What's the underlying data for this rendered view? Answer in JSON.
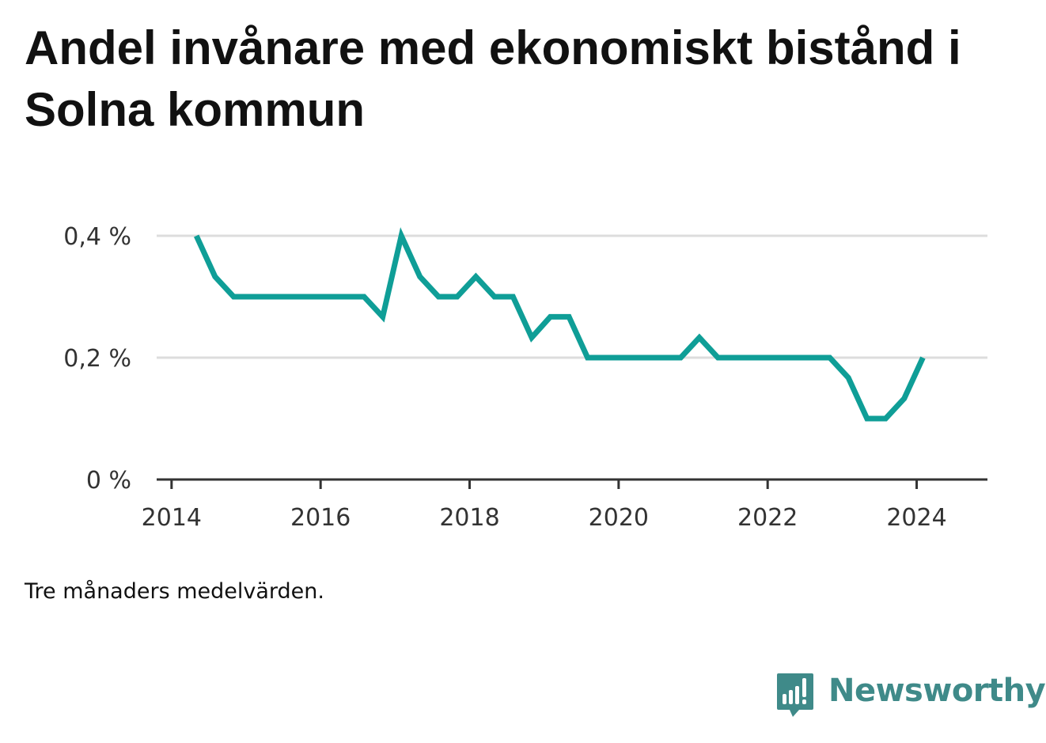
{
  "title": "Andel invånare med ekonomiskt bistånd i Solna kommun",
  "note": "Tre månaders medelvärden.",
  "brand": {
    "name": "Newsworthy",
    "icon": "newsworthy-bar-chart-logo-icon",
    "color": "#3f8a89"
  },
  "colors": {
    "line": "#0f9e97",
    "grid": "#dddddd",
    "axis": "#333333",
    "text": "#111111"
  },
  "chart_data": {
    "type": "line",
    "title": "Andel invånare med ekonomiskt bistånd i Solna kommun",
    "subtitle": "",
    "xlabel": "",
    "ylabel": "",
    "x_ticks": [
      2014,
      2016,
      2018,
      2020,
      2022,
      2024
    ],
    "y_ticks": [
      {
        "value": 0,
        "label": "0 %"
      },
      {
        "value": 0.2,
        "label": "0,2 %"
      },
      {
        "value": 0.4,
        "label": "0,4 %"
      }
    ],
    "xlim": [
      2013.8,
      2024.95
    ],
    "ylim": [
      0,
      0.4
    ],
    "grid": true,
    "legend": "none",
    "series": [
      {
        "x": [
          "2014-05",
          "2014-08",
          "2014-11",
          "2015-02",
          "2015-05",
          "2015-08",
          "2015-11",
          "2016-02",
          "2016-05",
          "2016-08",
          "2016-11",
          "2017-02",
          "2017-05",
          "2017-08",
          "2017-11",
          "2018-02",
          "2018-05",
          "2018-08",
          "2018-11",
          "2019-02",
          "2019-05",
          "2019-08",
          "2019-11",
          "2020-02",
          "2020-05",
          "2020-08",
          "2020-11",
          "2021-02",
          "2021-05",
          "2021-08",
          "2021-11",
          "2022-02",
          "2022-05",
          "2022-08",
          "2022-11",
          "2023-02",
          "2023-05",
          "2023-08",
          "2023-11",
          "2024-02"
        ],
        "values": [
          0.4,
          0.333,
          0.3,
          0.3,
          0.3,
          0.3,
          0.3,
          0.3,
          0.3,
          0.3,
          0.267,
          0.4,
          0.333,
          0.3,
          0.3,
          0.333,
          0.3,
          0.3,
          0.233,
          0.267,
          0.267,
          0.2,
          0.2,
          0.2,
          0.2,
          0.2,
          0.2,
          0.233,
          0.2,
          0.2,
          0.2,
          0.2,
          0.2,
          0.2,
          0.2,
          0.167,
          0.1,
          0.1,
          0.133,
          0.2
        ]
      }
    ]
  }
}
